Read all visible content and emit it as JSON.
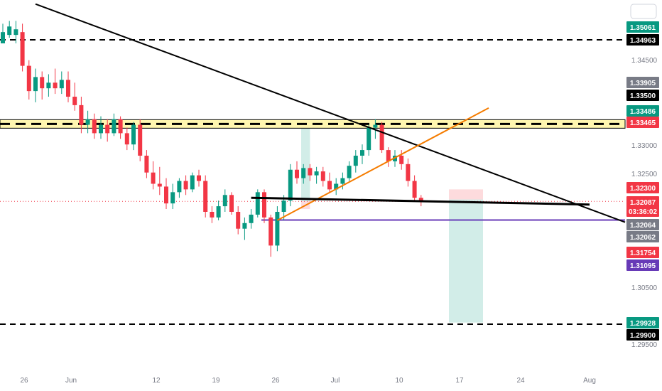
{
  "chart_data": {
    "type": "candlestick",
    "title": "",
    "xlabel": "",
    "ylabel": "",
    "ylim": [
      1.2955,
      1.353
    ],
    "x_ticks": [
      "26",
      "Jun",
      "12",
      "19",
      "26",
      "Jul",
      "10",
      "17",
      "24",
      "Aug"
    ],
    "y_ticks": [
      "1.34500",
      "1.33000",
      "1.32500",
      "1.30500",
      "1.29500"
    ],
    "colors": {
      "up": "#089981",
      "down": "#f23645",
      "text_light": "#ffffff"
    },
    "candles": [
      [
        1.349,
        1.3525,
        1.3495,
        1.351
      ],
      [
        1.3505,
        1.353,
        1.35,
        1.352
      ],
      [
        1.3505,
        1.353,
        1.349,
        1.3515
      ],
      [
        1.351,
        1.3525,
        1.344,
        1.345
      ],
      [
        1.345,
        1.346,
        1.339,
        1.3405
      ],
      [
        1.3405,
        1.3445,
        1.3385,
        1.343
      ],
      [
        1.343,
        1.344,
        1.339,
        1.341
      ],
      [
        1.341,
        1.3435,
        1.3395,
        1.342
      ],
      [
        1.342,
        1.3445,
        1.34,
        1.341
      ],
      [
        1.341,
        1.344,
        1.34,
        1.3425
      ],
      [
        1.3425,
        1.344,
        1.3385,
        1.3395
      ],
      [
        1.3395,
        1.342,
        1.337,
        1.338
      ],
      [
        1.338,
        1.3395,
        1.333,
        1.3345
      ],
      [
        1.3345,
        1.337,
        1.333,
        1.3355
      ],
      [
        1.3355,
        1.3365,
        1.332,
        1.333
      ],
      [
        1.333,
        1.336,
        1.332,
        1.3345
      ],
      [
        1.3345,
        1.3355,
        1.3315,
        1.333
      ],
      [
        1.333,
        1.3365,
        1.3325,
        1.3355
      ],
      [
        1.3355,
        1.336,
        1.332,
        1.333
      ],
      [
        1.333,
        1.334,
        1.33,
        1.331
      ],
      [
        1.331,
        1.335,
        1.33,
        1.3345
      ],
      [
        1.3345,
        1.3355,
        1.328,
        1.329
      ],
      [
        1.329,
        1.33,
        1.325,
        1.326
      ],
      [
        1.326,
        1.328,
        1.323,
        1.324
      ],
      [
        1.324,
        1.327,
        1.322,
        1.3235
      ],
      [
        1.3235,
        1.325,
        1.3195,
        1.3205
      ],
      [
        1.3205,
        1.324,
        1.3195,
        1.3225
      ],
      [
        1.3225,
        1.325,
        1.3215,
        1.3245
      ],
      [
        1.3245,
        1.3255,
        1.322,
        1.323
      ],
      [
        1.323,
        1.326,
        1.3225,
        1.3255
      ],
      [
        1.3255,
        1.3265,
        1.3235,
        1.3245
      ],
      [
        1.3245,
        1.3255,
        1.318,
        1.319
      ],
      [
        1.319,
        1.32,
        1.317,
        1.318
      ],
      [
        1.318,
        1.321,
        1.3175,
        1.32
      ],
      [
        1.32,
        1.323,
        1.319,
        1.322
      ],
      [
        1.322,
        1.3225,
        1.3185,
        1.319
      ],
      [
        1.319,
        1.32,
        1.315,
        1.316
      ],
      [
        1.316,
        1.318,
        1.314,
        1.317
      ],
      [
        1.317,
        1.3195,
        1.316,
        1.3185
      ],
      [
        1.3185,
        1.323,
        1.318,
        1.3225
      ],
      [
        1.3225,
        1.323,
        1.317,
        1.318
      ],
      [
        1.318,
        1.3185,
        1.311,
        1.313
      ],
      [
        1.313,
        1.32,
        1.312,
        1.319
      ],
      [
        1.319,
        1.322,
        1.3175,
        1.321
      ],
      [
        1.321,
        1.3275,
        1.32,
        1.3265
      ],
      [
        1.3265,
        1.328,
        1.324,
        1.325
      ],
      [
        1.325,
        1.3275,
        1.324,
        1.3268
      ],
      [
        1.3268,
        1.3275,
        1.3245,
        1.3255
      ],
      [
        1.3255,
        1.327,
        1.324,
        1.3262
      ],
      [
        1.3262,
        1.327,
        1.3235,
        1.3245
      ],
      [
        1.3245,
        1.326,
        1.3225,
        1.323
      ],
      [
        1.323,
        1.325,
        1.322,
        1.324
      ],
      [
        1.324,
        1.326,
        1.323,
        1.325
      ],
      [
        1.325,
        1.328,
        1.3245,
        1.3272
      ],
      [
        1.3272,
        1.33,
        1.326,
        1.329
      ],
      [
        1.329,
        1.331,
        1.3275,
        1.33
      ],
      [
        1.33,
        1.3345,
        1.329,
        1.334
      ],
      [
        1.334,
        1.3355,
        1.332,
        1.3345
      ],
      [
        1.3345,
        1.335,
        1.3295,
        1.33
      ],
      [
        1.33,
        1.3305,
        1.327,
        1.328
      ],
      [
        1.328,
        1.33,
        1.327,
        1.329
      ],
      [
        1.329,
        1.33,
        1.3265,
        1.3275
      ],
      [
        1.3275,
        1.3285,
        1.3235,
        1.3245
      ],
      [
        1.3245,
        1.3255,
        1.321,
        1.3215
      ],
      [
        1.3215,
        1.322,
        1.32,
        1.3209
      ]
    ],
    "horizontal_lines": [
      {
        "price": 1.34963,
        "style": "dashed",
        "color": "#000000"
      },
      {
        "price": 1.33465,
        "style": "dashed-highlighted",
        "color": "#000000",
        "band_color": "#fff6b0"
      },
      {
        "price": 1.299,
        "style": "dashed",
        "color": "#000000"
      },
      {
        "price": 1.31754,
        "style": "solid",
        "color": "#673ab7"
      },
      {
        "price": 1.32087,
        "style": "dotted",
        "color": "#f23645"
      }
    ],
    "trendlines": [
      {
        "name": "descending",
        "color": "#000000",
        "from_candle": 5,
        "from_price": 1.356,
        "to_date": "Aug",
        "to_price": 1.3195
      },
      {
        "name": "ascending",
        "color": "#f57c00",
        "from_candle": 42,
        "from_price": 1.3175,
        "to_date": "17",
        "to_price": 1.3375
      },
      {
        "name": "neckline",
        "color": "#000000",
        "from_candle": 38,
        "from_price": 1.3215,
        "to_date": "Aug",
        "to_price": 1.3203
      }
    ],
    "price_labels": [
      {
        "text": "1.35061",
        "bg": "#089981",
        "fg": "#ffffff"
      },
      {
        "text": "1.34963",
        "bg": "#000000",
        "fg": "#ffffff"
      },
      {
        "text": "1.33905",
        "bg": "#787b86",
        "fg": "#ffffff"
      },
      {
        "text": "1.33500",
        "bg": "#000000",
        "fg": "#ffffff"
      },
      {
        "text": "1.33486",
        "bg": "#089981",
        "fg": "#ffffff"
      },
      {
        "text": "1.33465",
        "bg": "#f23645",
        "fg": "#ffffff"
      },
      {
        "text": "1.32300",
        "bg": "#f23645",
        "fg": "#ffffff"
      },
      {
        "text": "1.32087",
        "bg": "#f23645",
        "fg": "#ffffff"
      },
      {
        "text": "03:36:02",
        "bg": "#f23645",
        "fg": "#ffffff"
      },
      {
        "text": "1.32064",
        "bg": "#787b86",
        "fg": "#ffffff"
      },
      {
        "text": "1.32062",
        "bg": "#787b86",
        "fg": "#ffffff"
      },
      {
        "text": "1.31754",
        "bg": "#f23645",
        "fg": "#ffffff"
      },
      {
        "text": "1.31095",
        "bg": "#673ab7",
        "fg": "#ffffff"
      },
      {
        "text": "1.29928",
        "bg": "#089981",
        "fg": "#ffffff"
      },
      {
        "text": "1.29900",
        "bg": "#000000",
        "fg": "#ffffff"
      }
    ],
    "positions": [
      {
        "name": "long-position",
        "entry": 1.3209,
        "stop": 1.3195,
        "target": 1.3348,
        "entry_date": "26",
        "to_candle": 47
      },
      {
        "name": "short-position",
        "entry": 1.3212,
        "stop": 1.323,
        "target": 1.2993,
        "entry_date": "17",
        "to_candle": 73
      }
    ],
    "grid": false,
    "legend": "none"
  }
}
